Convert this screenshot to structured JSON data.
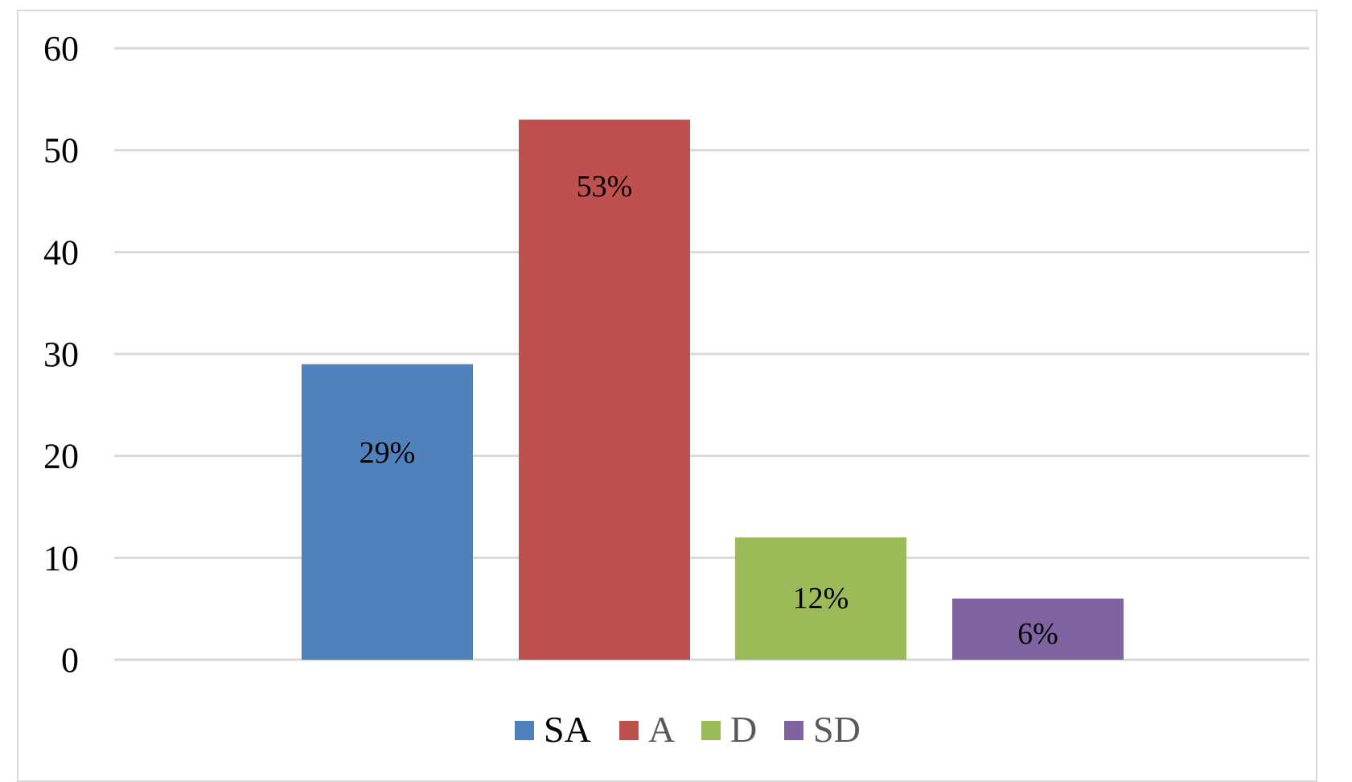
{
  "chart_data": {
    "type": "bar",
    "title": "",
    "xlabel": "",
    "ylabel": "",
    "ylim": [
      0,
      60
    ],
    "yticks": [
      0,
      10,
      20,
      30,
      40,
      50,
      60
    ],
    "grid": true,
    "legend_position": "bottom",
    "series": [
      {
        "name": "SA",
        "value": 29,
        "label": "29%",
        "color": "#4f81bd"
      },
      {
        "name": "A",
        "value": 53,
        "label": "53%",
        "color": "#c0504d"
      },
      {
        "name": "D",
        "value": 12,
        "label": "12%",
        "color": "#9bbb59"
      },
      {
        "name": "SD",
        "value": 6,
        "label": "6%",
        "color": "#8064a2"
      }
    ]
  }
}
